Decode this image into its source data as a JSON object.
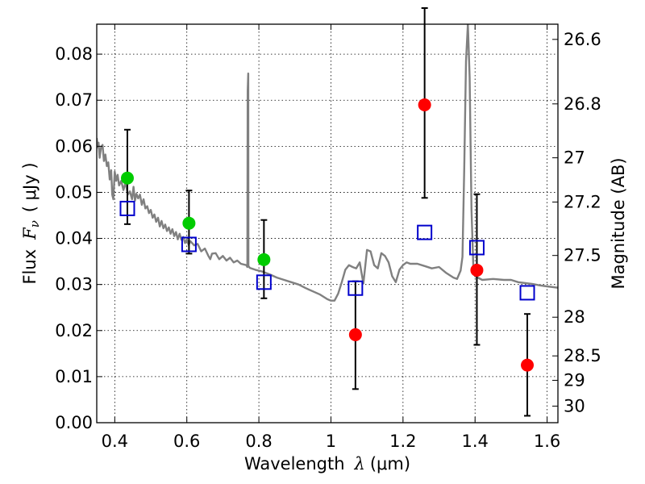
{
  "chart_data": {
    "type": "scatter",
    "xlabel_prefix": "Wavelength",
    "xlabel_symbol": "λ",
    "xlabel_units": "(μm)",
    "ylabel_prefix": "Flux",
    "ylabel_symbol": "F",
    "ylabel_symbol_sub": "ν",
    "ylabel_units": "( μJy )",
    "y2label": "Magnitude (AB)",
    "xlim": [
      0.35,
      1.63
    ],
    "ylim": [
      0.0,
      0.0865
    ],
    "x_ticks": [
      0.4,
      0.6,
      0.8,
      1.0,
      1.2,
      1.4,
      1.6
    ],
    "x_tick_labels": [
      "0.4",
      "0.6",
      "0.8",
      "1",
      "1.2",
      "1.4",
      "1.6"
    ],
    "y_ticks": [
      0.0,
      0.01,
      0.02,
      0.03,
      0.04,
      0.05,
      0.06,
      0.07,
      0.08
    ],
    "y_tick_labels": [
      "0.00",
      "0.01",
      "0.02",
      "0.03",
      "0.04",
      "0.05",
      "0.06",
      "0.07",
      "0.08"
    ],
    "y2_ticks": [
      {
        "label": "26.6",
        "flux": 0.0832
      },
      {
        "label": "26.8",
        "flux": 0.0692
      },
      {
        "label": "27",
        "flux": 0.0575
      },
      {
        "label": "27.2",
        "flux": 0.0479
      },
      {
        "label": "27.5",
        "flux": 0.0363
      },
      {
        "label": "28",
        "flux": 0.0229
      },
      {
        "label": "28.5",
        "flux": 0.0145
      },
      {
        "label": "29",
        "flux": 0.0092
      },
      {
        "label": "30",
        "flux": 0.0036
      }
    ],
    "grid": true,
    "colors": {
      "model": "#808080",
      "green": "#00cc00",
      "red": "#ff0000",
      "square": "#0000cc",
      "errorbar": "#000000"
    },
    "series": [
      {
        "kind": "line",
        "points": [
          [
            0.35,
            0.0618
          ],
          [
            0.352,
            0.0598
          ],
          [
            0.355,
            0.0608
          ],
          [
            0.358,
            0.0575
          ],
          [
            0.362,
            0.0598
          ],
          [
            0.366,
            0.0603
          ],
          [
            0.37,
            0.0568
          ],
          [
            0.374,
            0.0582
          ],
          [
            0.378,
            0.0557
          ],
          [
            0.382,
            0.0565
          ],
          [
            0.386,
            0.0528
          ],
          [
            0.39,
            0.0548
          ],
          [
            0.393,
            0.0495
          ],
          [
            0.396,
            0.0485
          ],
          [
            0.4,
            0.0545
          ],
          [
            0.404,
            0.0525
          ],
          [
            0.408,
            0.0538
          ],
          [
            0.412,
            0.0515
          ],
          [
            0.418,
            0.0525
          ],
          [
            0.424,
            0.0505
          ],
          [
            0.43,
            0.0522
          ],
          [
            0.436,
            0.0495
          ],
          [
            0.442,
            0.0502
          ],
          [
            0.448,
            0.0485
          ],
          [
            0.452,
            0.0512
          ],
          [
            0.456,
            0.0482
          ],
          [
            0.46,
            0.0497
          ],
          [
            0.465,
            0.0487
          ],
          [
            0.47,
            0.0495
          ],
          [
            0.475,
            0.0473
          ],
          [
            0.48,
            0.0485
          ],
          [
            0.485,
            0.0465
          ],
          [
            0.49,
            0.047
          ],
          [
            0.495,
            0.0455
          ],
          [
            0.5,
            0.0462
          ],
          [
            0.505,
            0.0445
          ],
          [
            0.51,
            0.0452
          ],
          [
            0.515,
            0.0436
          ],
          [
            0.52,
            0.0445
          ],
          [
            0.525,
            0.0426
          ],
          [
            0.53,
            0.0438
          ],
          [
            0.535,
            0.0422
          ],
          [
            0.54,
            0.043
          ],
          [
            0.545,
            0.0416
          ],
          [
            0.55,
            0.0424
          ],
          [
            0.555,
            0.041
          ],
          [
            0.56,
            0.042
          ],
          [
            0.565,
            0.0405
          ],
          [
            0.57,
            0.0414
          ],
          [
            0.575,
            0.0398
          ],
          [
            0.58,
            0.041
          ],
          [
            0.585,
            0.0397
          ],
          [
            0.59,
            0.0403
          ],
          [
            0.595,
            0.039
          ],
          [
            0.6,
            0.0398
          ],
          [
            0.605,
            0.0386
          ],
          [
            0.61,
            0.0394
          ],
          [
            0.62,
            0.0385
          ],
          [
            0.63,
            0.0388
          ],
          [
            0.64,
            0.0372
          ],
          [
            0.65,
            0.0378
          ],
          [
            0.66,
            0.0362
          ],
          [
            0.665,
            0.0355
          ],
          [
            0.67,
            0.0367
          ],
          [
            0.68,
            0.0368
          ],
          [
            0.69,
            0.0355
          ],
          [
            0.7,
            0.0362
          ],
          [
            0.71,
            0.0352
          ],
          [
            0.72,
            0.0358
          ],
          [
            0.73,
            0.0348
          ],
          [
            0.74,
            0.0352
          ],
          [
            0.75,
            0.0345
          ],
          [
            0.765,
            0.0342
          ],
          [
            0.768,
            0.0338
          ],
          [
            0.769,
            0.072
          ],
          [
            0.7705,
            0.0758
          ],
          [
            0.771,
            0.034
          ],
          [
            0.775,
            0.0336
          ],
          [
            0.79,
            0.0332
          ],
          [
            0.81,
            0.0328
          ],
          [
            0.83,
            0.0322
          ],
          [
            0.85,
            0.0315
          ],
          [
            0.87,
            0.031
          ],
          [
            0.89,
            0.0305
          ],
          [
            0.91,
            0.03
          ],
          [
            0.93,
            0.0292
          ],
          [
            0.95,
            0.0285
          ],
          [
            0.97,
            0.0278
          ],
          [
            0.99,
            0.0268
          ],
          [
            1.0,
            0.0265
          ],
          [
            1.01,
            0.0265
          ],
          [
            1.02,
            0.028
          ],
          [
            1.03,
            0.0305
          ],
          [
            1.04,
            0.0332
          ],
          [
            1.05,
            0.0342
          ],
          [
            1.06,
            0.0338
          ],
          [
            1.07,
            0.0335
          ],
          [
            1.08,
            0.0348
          ],
          [
            1.09,
            0.0302
          ],
          [
            1.1,
            0.0375
          ],
          [
            1.11,
            0.0372
          ],
          [
            1.12,
            0.0342
          ],
          [
            1.13,
            0.0335
          ],
          [
            1.14,
            0.0368
          ],
          [
            1.15,
            0.0362
          ],
          [
            1.16,
            0.0348
          ],
          [
            1.17,
            0.0318
          ],
          [
            1.18,
            0.0305
          ],
          [
            1.19,
            0.0332
          ],
          [
            1.2,
            0.0342
          ],
          [
            1.21,
            0.0348
          ],
          [
            1.22,
            0.0345
          ],
          [
            1.24,
            0.0345
          ],
          [
            1.26,
            0.034
          ],
          [
            1.28,
            0.0335
          ],
          [
            1.3,
            0.0338
          ],
          [
            1.32,
            0.0325
          ],
          [
            1.34,
            0.0315
          ],
          [
            1.35,
            0.0312
          ],
          [
            1.36,
            0.033
          ],
          [
            1.365,
            0.036
          ],
          [
            1.37,
            0.0552
          ],
          [
            1.375,
            0.0785
          ],
          [
            1.38,
            0.0865
          ],
          [
            1.385,
            0.075
          ],
          [
            1.39,
            0.0462
          ],
          [
            1.395,
            0.0342
          ],
          [
            1.4,
            0.0318
          ],
          [
            1.42,
            0.031
          ],
          [
            1.45,
            0.0312
          ],
          [
            1.48,
            0.031
          ],
          [
            1.5,
            0.031
          ],
          [
            1.52,
            0.0305
          ],
          [
            1.54,
            0.0303
          ],
          [
            1.56,
            0.0301
          ],
          [
            1.58,
            0.0298
          ],
          [
            1.6,
            0.0296
          ],
          [
            1.63,
            0.0293
          ]
        ]
      },
      {
        "kind": "points-with-errors",
        "marker": "circle",
        "color_key": "green",
        "points": [
          {
            "x": 0.435,
            "y": 0.0531,
            "lo": 0.0431,
            "hi": 0.0636
          },
          {
            "x": 0.606,
            "y": 0.0433,
            "lo": 0.0367,
            "hi": 0.0504
          },
          {
            "x": 0.814,
            "y": 0.0354,
            "lo": 0.027,
            "hi": 0.044
          }
        ]
      },
      {
        "kind": "points-with-errors",
        "marker": "circle",
        "color_key": "red",
        "points": [
          {
            "x": 1.068,
            "y": 0.0191,
            "lo": 0.0073,
            "hi": 0.0307
          },
          {
            "x": 1.26,
            "y": 0.069,
            "lo": 0.0488,
            "hi": 0.09
          },
          {
            "x": 1.405,
            "y": 0.0331,
            "lo": 0.0169,
            "hi": 0.0496
          },
          {
            "x": 1.545,
            "y": 0.0125,
            "lo": 0.0015,
            "hi": 0.0236
          }
        ]
      },
      {
        "kind": "points",
        "marker": "open-square",
        "color_key": "square",
        "points": [
          {
            "x": 0.435,
            "y": 0.0465
          },
          {
            "x": 0.606,
            "y": 0.0387
          },
          {
            "x": 0.814,
            "y": 0.0305
          },
          {
            "x": 1.068,
            "y": 0.0292
          },
          {
            "x": 1.26,
            "y": 0.0413
          },
          {
            "x": 1.405,
            "y": 0.038
          },
          {
            "x": 1.545,
            "y": 0.0282
          }
        ]
      }
    ]
  }
}
